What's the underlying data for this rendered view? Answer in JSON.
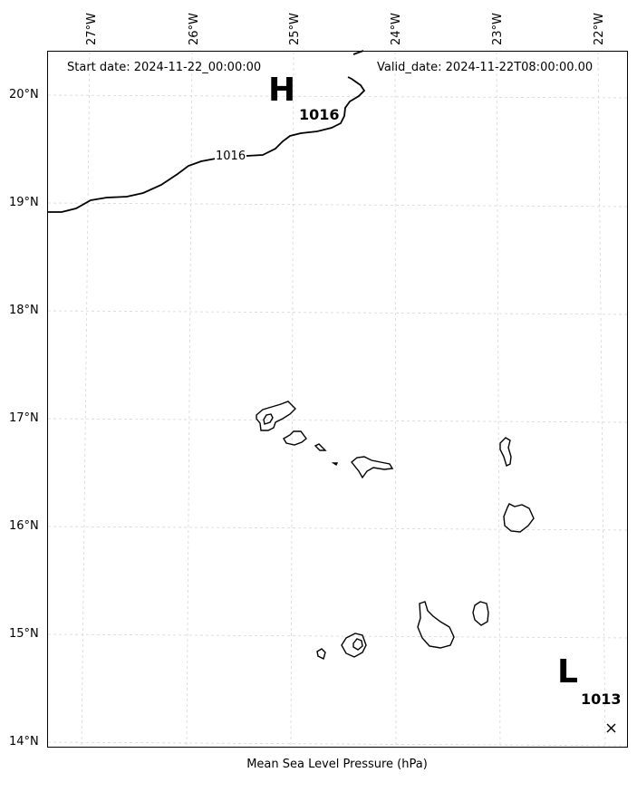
{
  "header": {
    "start_date": "Start date: 2024-11-22_00:00:00",
    "valid_date": "Valid_date: 2024-11-22T08:00:00.00"
  },
  "axes": {
    "longitude_labels": [
      "27°W",
      "26°W",
      "25°W",
      "24°W",
      "23°W",
      "22°W"
    ],
    "latitude_labels": [
      "20°N",
      "19°N",
      "18°N",
      "17°N",
      "16°N",
      "15°N",
      "14°N"
    ],
    "grid": true
  },
  "isobars": [
    {
      "label": "1016"
    }
  ],
  "pressure_centers": [
    {
      "letter": "H",
      "value": "1016"
    },
    {
      "letter": "L",
      "value": "1013",
      "marker": "×"
    }
  ],
  "caption": "Mean Sea Level Pressure (hPa)",
  "colors": {
    "isobar": "#000000",
    "coastline": "#000000",
    "grid": "#cccccc"
  }
}
